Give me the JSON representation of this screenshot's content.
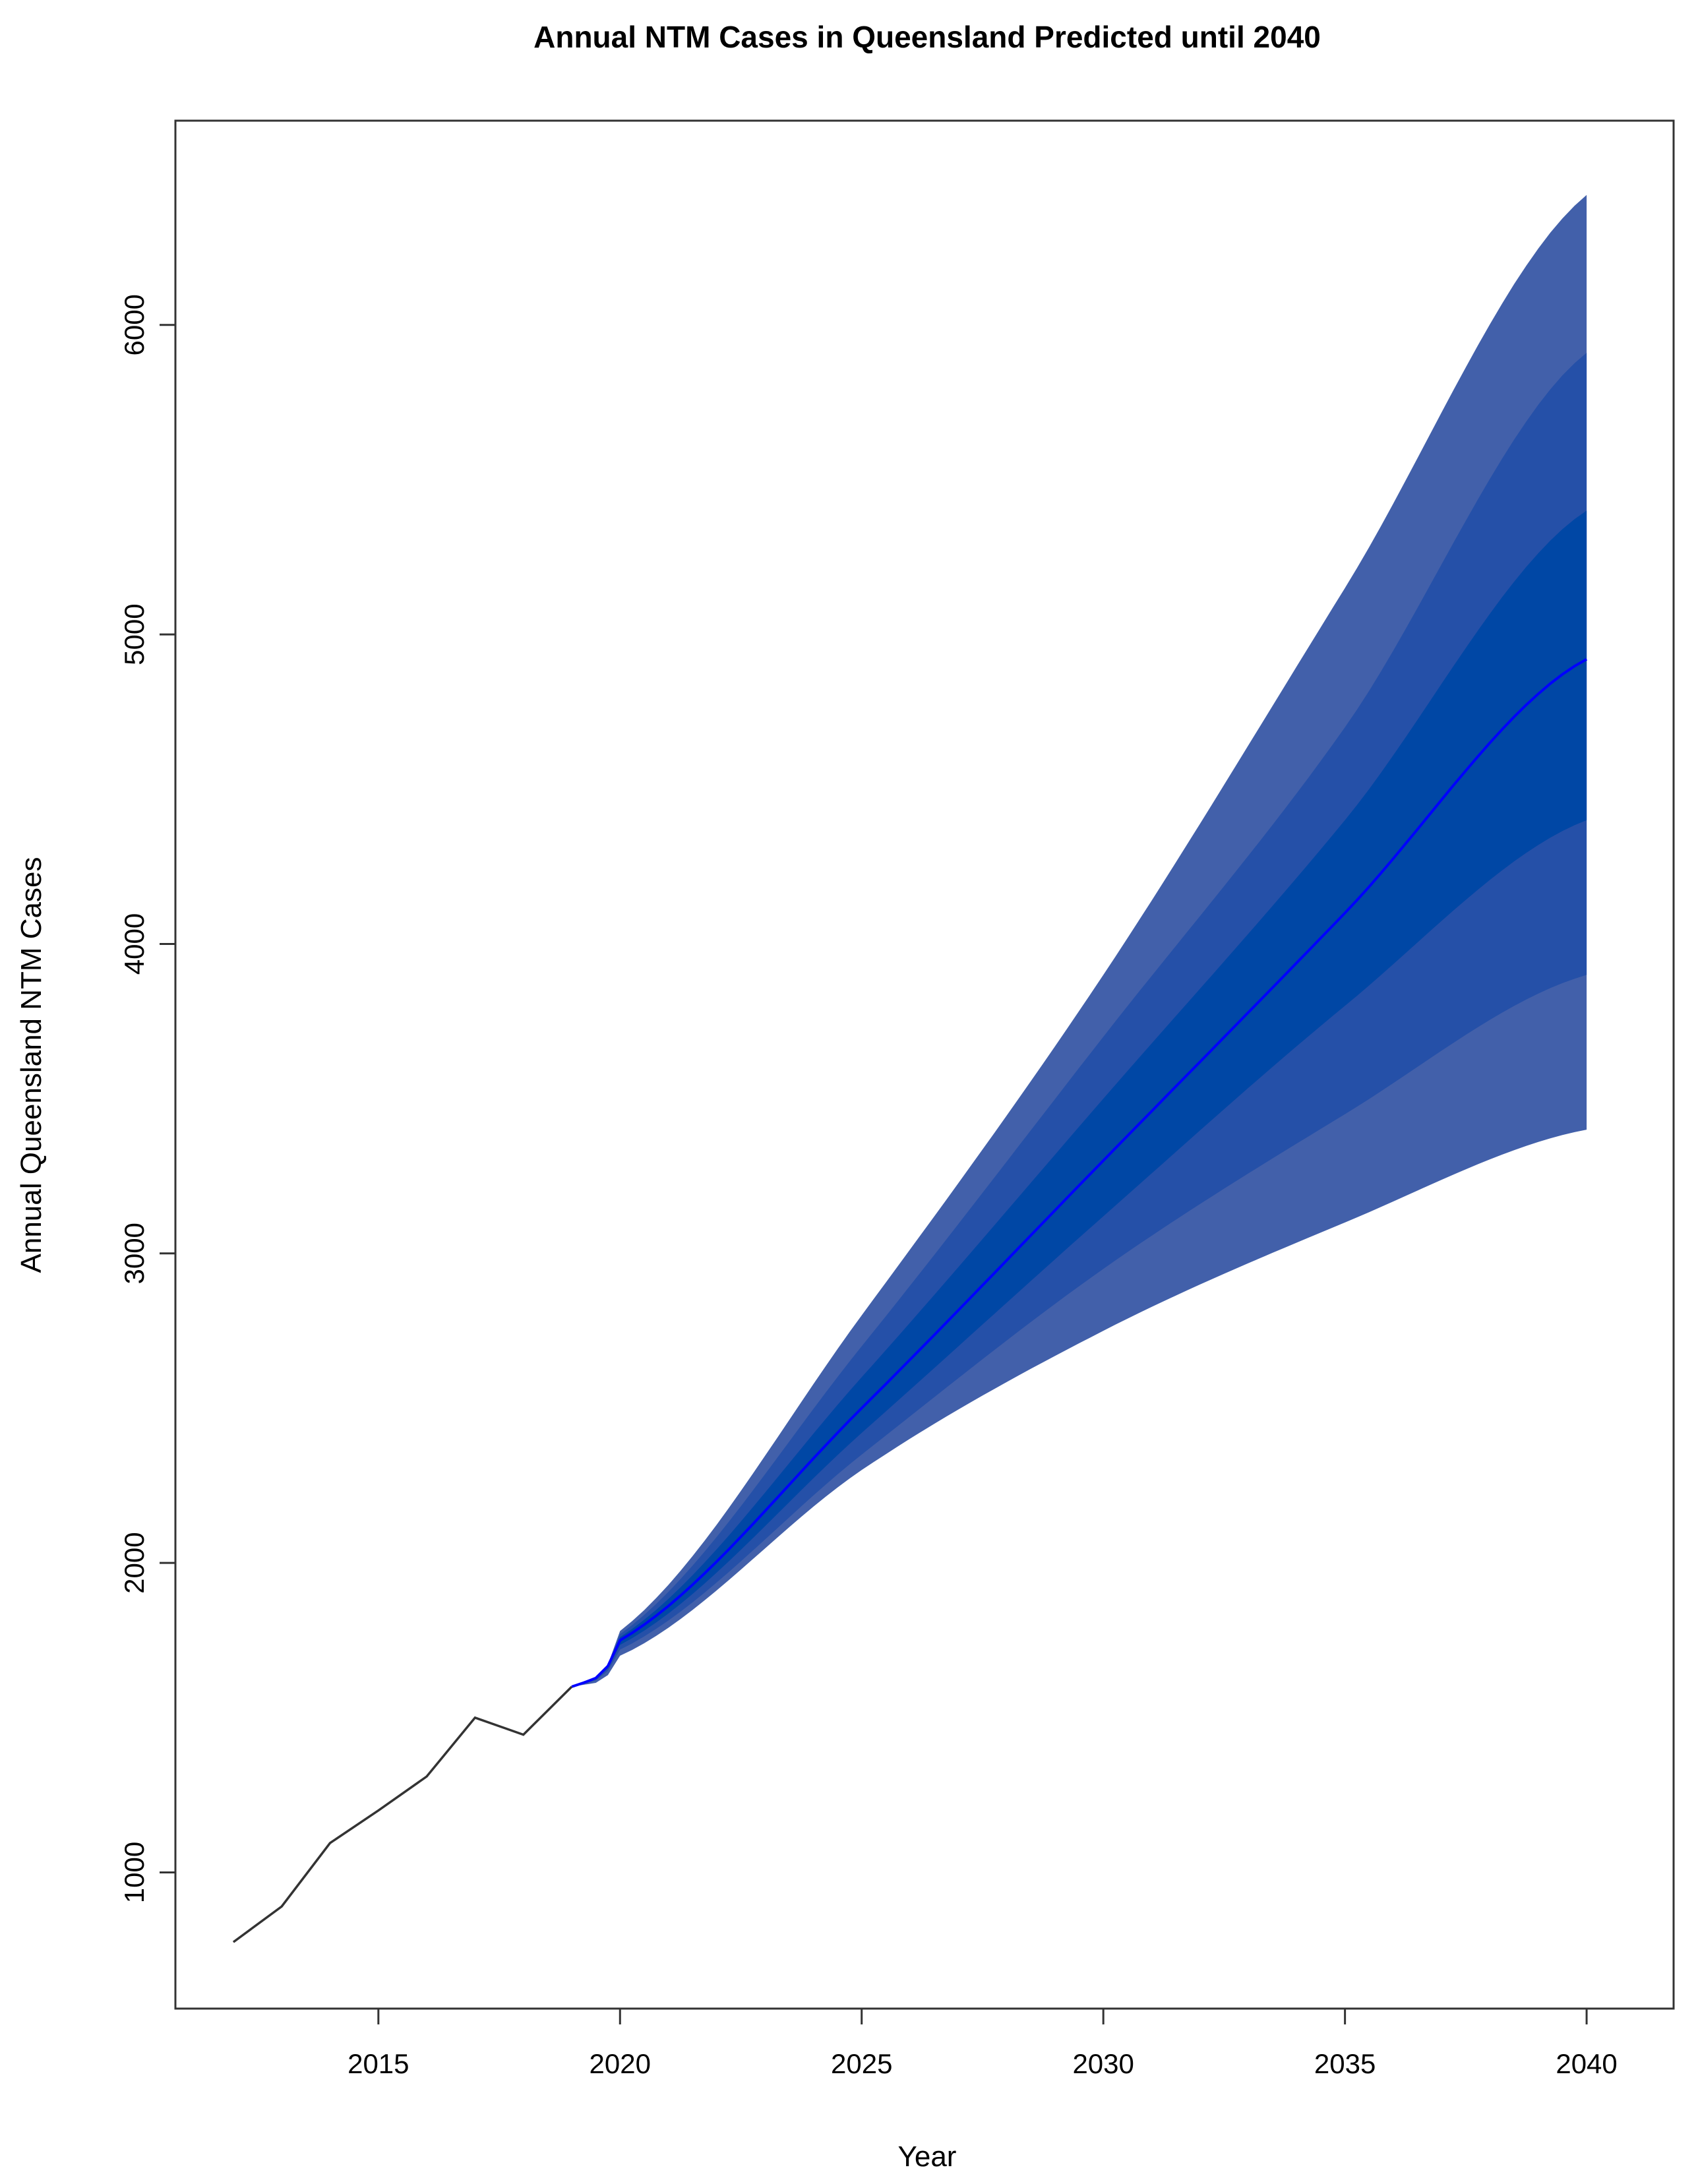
{
  "chart_data": {
    "type": "line",
    "title": "Annual NTM Cases in Queensland Predicted until 2040",
    "xlabel": "Year",
    "ylabel": "Annual Queensland NTM Cases",
    "xlim": [
      2010.8,
      2041.8
    ],
    "ylim": [
      560,
      6660
    ],
    "x_ticks": [
      2015,
      2020,
      2025,
      2030,
      2035,
      2040
    ],
    "y_ticks": [
      1000,
      2000,
      3000,
      4000,
      5000,
      6000
    ],
    "grid": false,
    "legend": "none",
    "observed": {
      "x": [
        2012,
        2013,
        2014,
        2015,
        2016,
        2017,
        2018,
        2019
      ],
      "y": [
        775,
        890,
        1095,
        1200,
        1310,
        1500,
        1445,
        1600
      ]
    },
    "forecast": {
      "x": [
        2019,
        2020,
        2025,
        2030,
        2035,
        2040
      ],
      "mean": [
        1600,
        1750,
        2500,
        3300,
        4100,
        4920
      ],
      "lower_80": [
        1600,
        1720,
        2350,
        2950,
        3450,
        3900
      ],
      "upper_80": [
        1600,
        1770,
        2700,
        3700,
        4700,
        5910
      ],
      "lower_95": [
        1600,
        1700,
        2300,
        2750,
        3100,
        3400
      ],
      "upper_95": [
        1600,
        1780,
        2800,
        3900,
        5150,
        6420
      ],
      "lower_50": [
        1600,
        1735,
        2420,
        3120,
        3800,
        4400
      ],
      "upper_50": [
        1600,
        1760,
        2600,
        3500,
        4400,
        5400
      ]
    },
    "colors": {
      "observed_line": "#333333",
      "forecast_line": "#0000ff",
      "band_outer": "#4260aa",
      "band_middle": "#2550a8",
      "band_inner": "#0047a5"
    }
  }
}
